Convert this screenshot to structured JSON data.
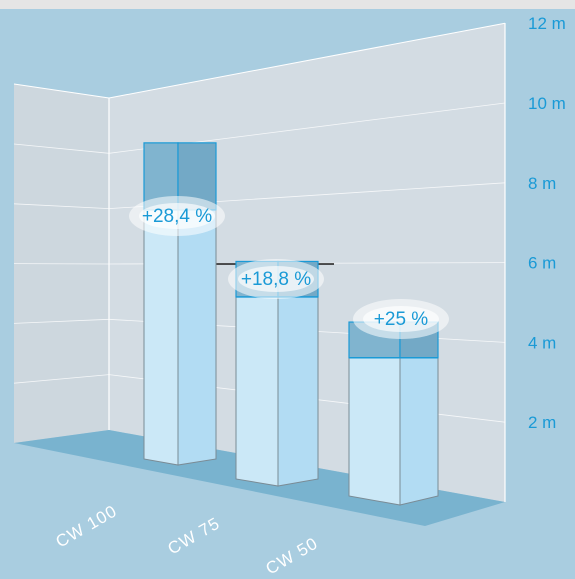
{
  "chart_data": {
    "type": "bar",
    "categories": [
      "CW 100",
      "CW 75",
      "CW 50"
    ],
    "y_ticks": [
      "2 m",
      "4 m",
      "6 m",
      "8 m",
      "10 m",
      "12 m"
    ],
    "ylim": [
      0,
      12
    ],
    "series": [
      {
        "values": [
          5.2,
          4.1,
          3.1
        ]
      },
      {
        "values": [
          6.6,
          4.9,
          3.9
        ]
      }
    ],
    "increase_labels": [
      "+28,4 %",
      "+18,8 %",
      "+25 %"
    ],
    "colors": {
      "background": "#a9cde0",
      "top_strip": "#e5e5e5",
      "wall": "#cfd8df",
      "floor": "#78b3cf",
      "bar_base": "#cdeaf8",
      "bar_increase": "#80b4cf",
      "accent": "#1a9ad6"
    }
  }
}
